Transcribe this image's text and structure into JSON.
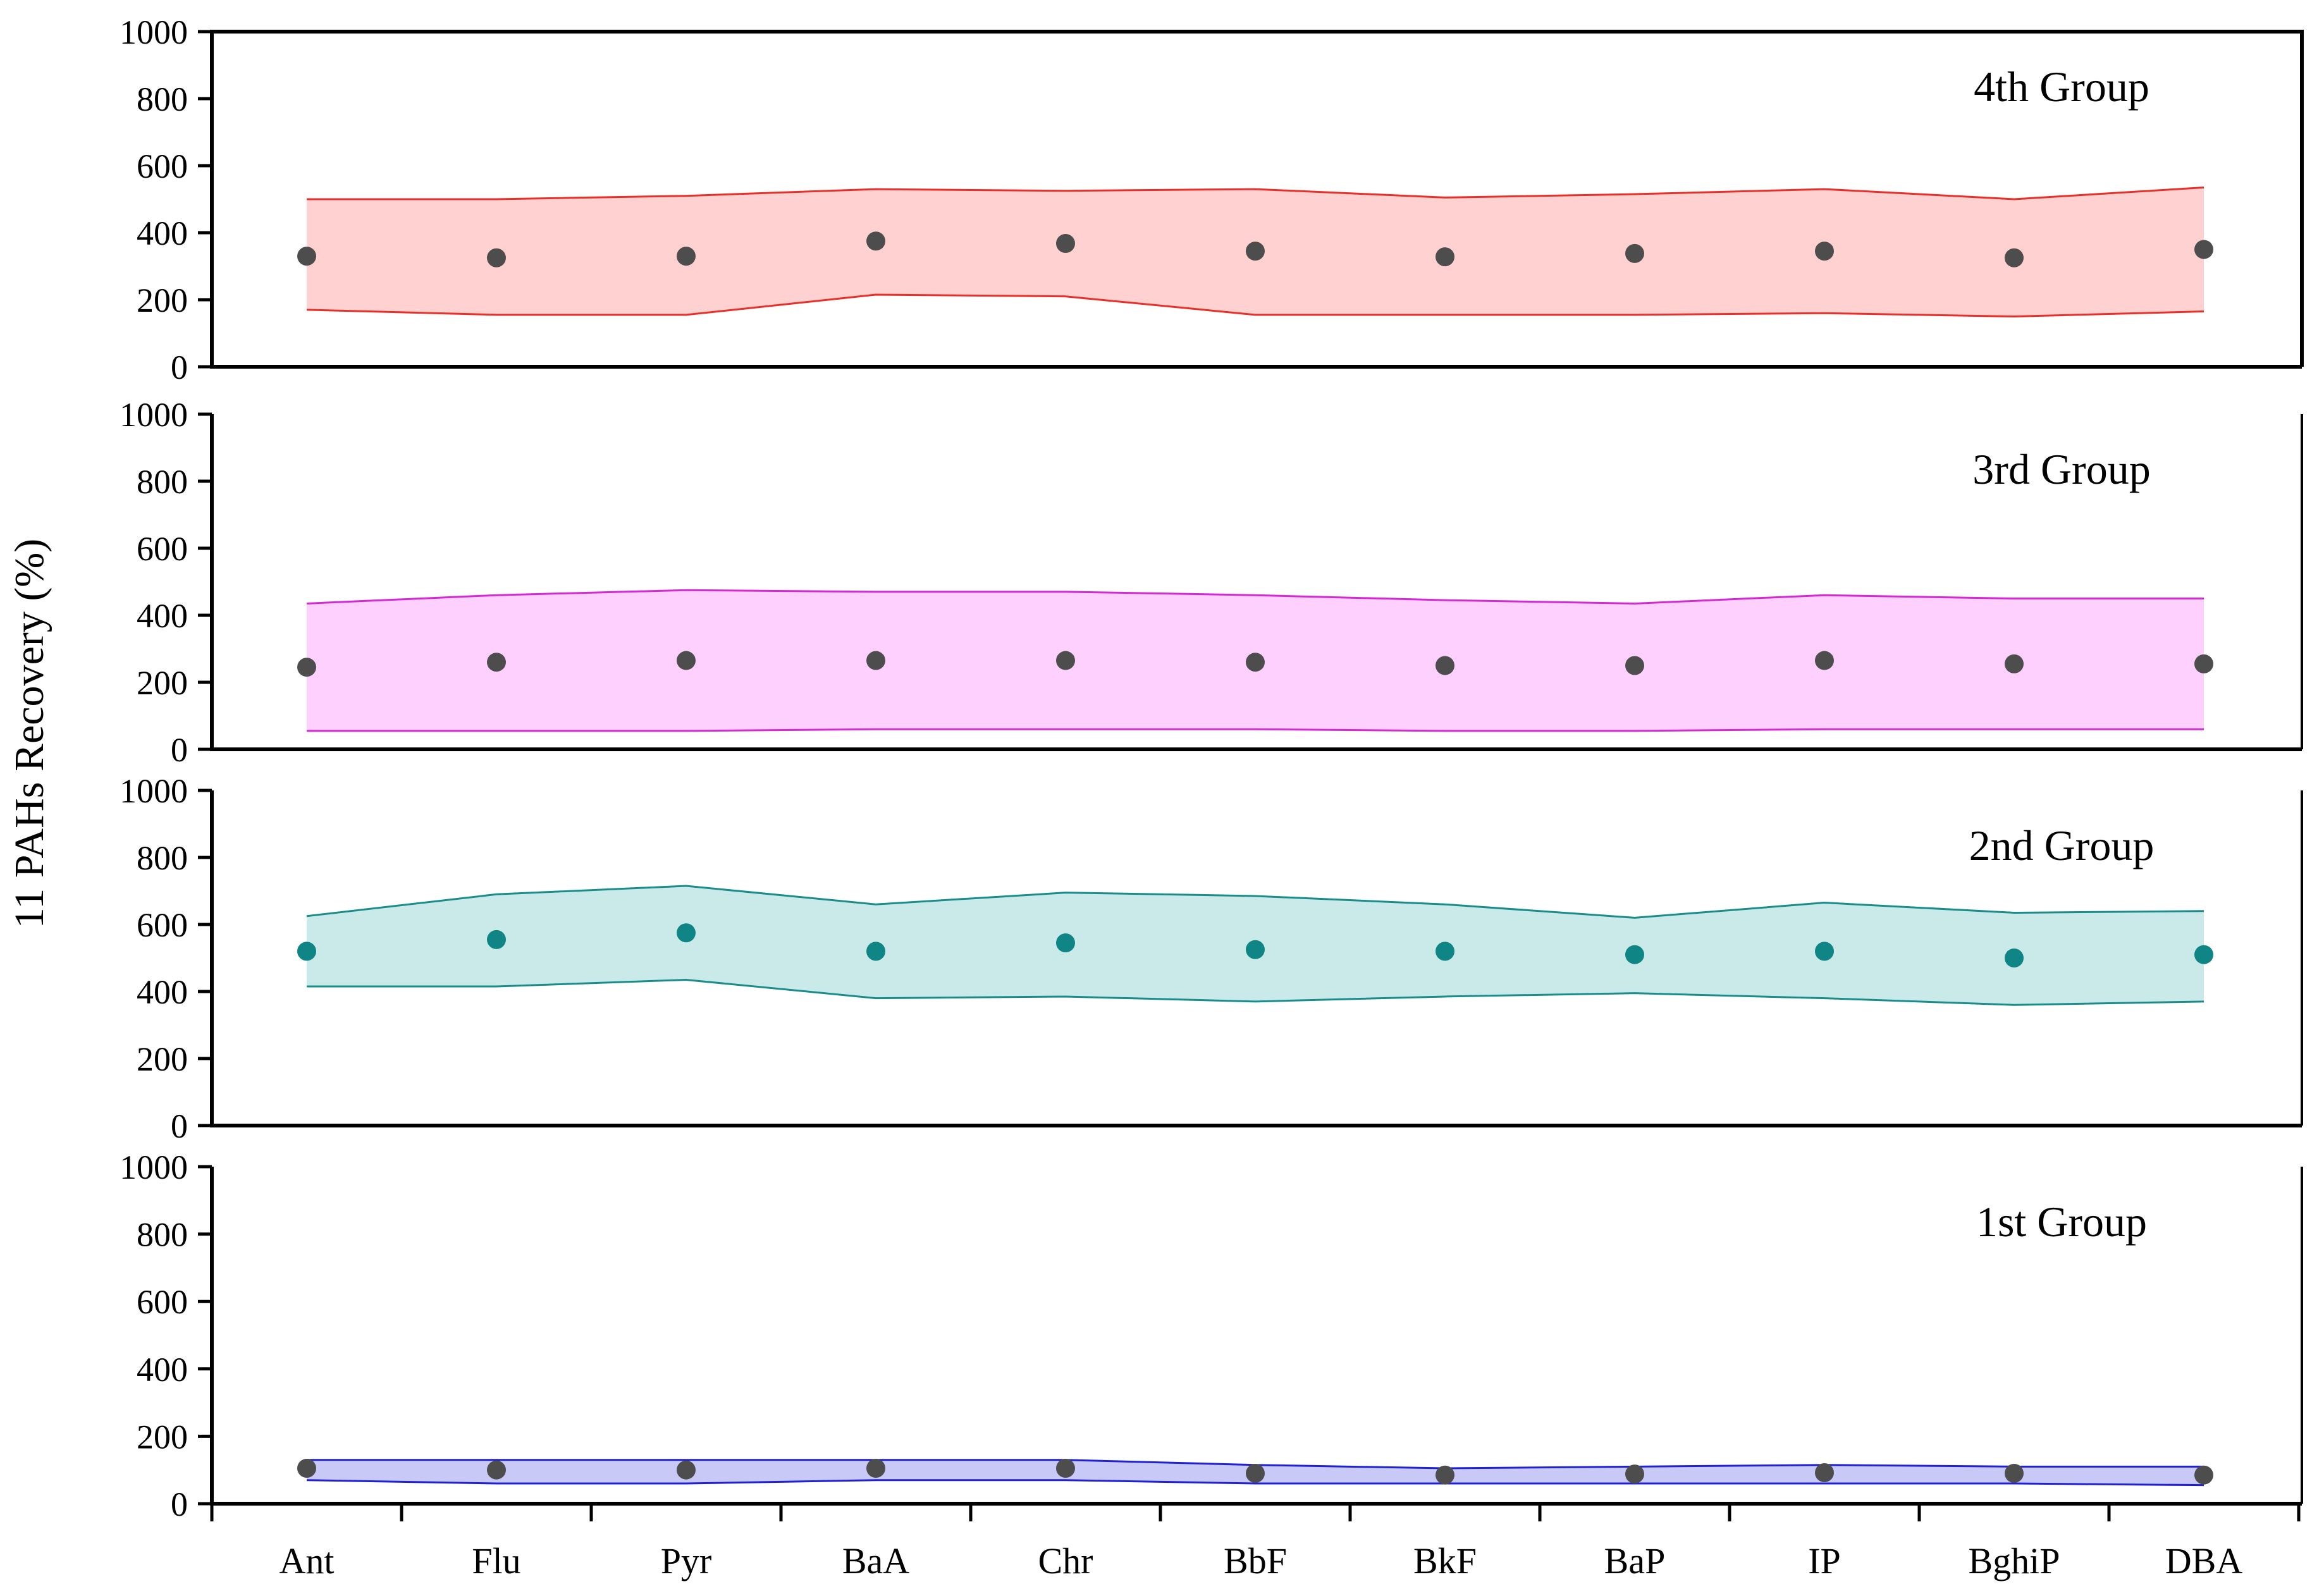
{
  "chart_data": {
    "type": "area",
    "ylabel": "11 PAHs Recovery (%)",
    "categories": [
      "Ant",
      "Flu",
      "Pyr",
      "BaA",
      "Chr",
      "BbF",
      "BkF",
      "BaP",
      "IP",
      "BghiP",
      "DBA"
    ],
    "ylim": [
      0,
      1000
    ],
    "yticks": [
      0,
      200,
      400,
      600,
      800,
      1000
    ],
    "grid": false,
    "panels": [
      {
        "label": "4th Group",
        "line_color": "#e8302a",
        "fill_color": "#ffd1d1",
        "dot_color": "#4d4d4d",
        "upper": [
          500,
          500,
          510,
          530,
          525,
          530,
          505,
          515,
          530,
          500,
          535
        ],
        "lower": [
          170,
          155,
          155,
          215,
          210,
          155,
          155,
          155,
          160,
          150,
          165
        ],
        "mean": [
          330,
          325,
          330,
          375,
          368,
          345,
          328,
          338,
          345,
          325,
          350
        ]
      },
      {
        "label": "3rd Group",
        "line_color": "#d32ad3",
        "fill_color": "#fdd0fd",
        "dot_color": "#4d4d4d",
        "upper": [
          435,
          460,
          475,
          470,
          470,
          460,
          445,
          435,
          460,
          450,
          450
        ],
        "lower": [
          55,
          55,
          55,
          60,
          60,
          60,
          55,
          55,
          60,
          60,
          60
        ],
        "mean": [
          245,
          260,
          265,
          265,
          265,
          260,
          250,
          250,
          265,
          255,
          255
        ]
      },
      {
        "label": "2nd Group",
        "line_color": "#1a8c8c",
        "fill_color": "#c9eae9",
        "dot_color": "#0f8585",
        "upper": [
          625,
          690,
          715,
          660,
          695,
          685,
          660,
          620,
          665,
          635,
          640
        ],
        "lower": [
          415,
          415,
          435,
          380,
          385,
          370,
          385,
          395,
          380,
          360,
          370
        ],
        "mean": [
          520,
          555,
          575,
          520,
          545,
          525,
          520,
          510,
          520,
          500,
          510
        ]
      },
      {
        "label": "1st Group",
        "line_color": "#2121d4",
        "fill_color": "#c9c9f7",
        "dot_color": "#4d4d4d",
        "upper": [
          130,
          130,
          130,
          130,
          130,
          115,
          105,
          110,
          115,
          110,
          110
        ],
        "lower": [
          70,
          60,
          60,
          70,
          70,
          60,
          60,
          60,
          60,
          60,
          55
        ],
        "mean": [
          105,
          100,
          100,
          105,
          105,
          90,
          85,
          88,
          92,
          90,
          85
        ]
      }
    ]
  }
}
